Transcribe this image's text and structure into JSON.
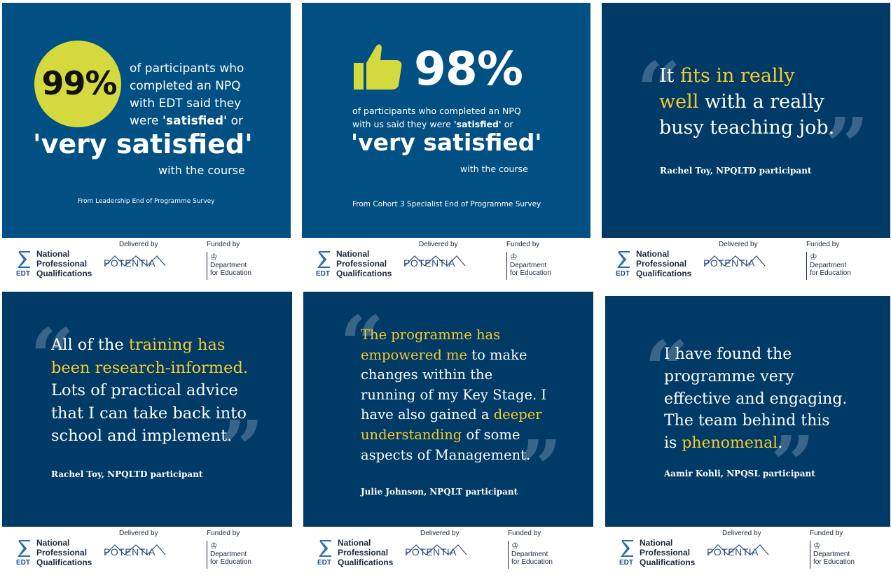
{
  "colors": {
    "blue_light": "#015083",
    "blue_dark": "#003A67",
    "highlight": "#F6C92C",
    "circle": "#D4DA3E"
  },
  "footer": {
    "npq_line1": "National",
    "npq_line2": "Professional",
    "npq_line3": "Qualifications",
    "edt": "EDT",
    "delivered_by": "Delivered by",
    "tsh": "TSH",
    "potentia": "POTENTIA",
    "funded_by": "Funded by",
    "dfe_line1": "Department",
    "dfe_line2": "for Education"
  },
  "card1": {
    "stat": "99%",
    "line1": "of participants who",
    "line2": "completed an NPQ",
    "line3": "with EDT said they",
    "line4_pre": "were ",
    "line4_bold": "'satisfied'",
    "line4_post": " or",
    "big": "'very satisfied'",
    "tail": "with the course",
    "source": "From Leadership End of Programme Survey"
  },
  "card2": {
    "stat": "98%",
    "line1": "of participants who completed an NPQ",
    "line2_pre": "with us said they were ",
    "line2_bold": "'satisfied'",
    "line2_post": " or",
    "big": "'very satisfied'",
    "tail": "with the course",
    "source": "From Cohort 3 Specialist End of Programme Survey"
  },
  "card3": {
    "q1": "It ",
    "q1_hl": "fits in really",
    "q2_hl": "well",
    "q2": " with a really",
    "q3": "busy teaching job.",
    "attrib": "Rachel Toy, NPQLTD participant"
  },
  "card4": {
    "q1": "All of the ",
    "q1_hl": "training has",
    "q2_hl": "been research-informed.",
    "q3": "Lots of practical advice",
    "q4": "that I can take back into",
    "q5": "school and implement.",
    "attrib": "Rachel Toy, NPQLTD participant"
  },
  "card5": {
    "q1_hl": "The programme has",
    "q2_hl": "empowered me",
    "q2": " to make",
    "q3": "changes within the",
    "q4": "running of my Key Stage. I",
    "q5": "have also gained a ",
    "q5_hl": "deeper",
    "q6_hl": "understanding",
    "q6": " of some",
    "q7": "aspects of Management.",
    "attrib": "Julie Johnson, NPQLT participant"
  },
  "card6": {
    "q1": "I have found the",
    "q2": "programme very",
    "q3": "effective and engaging.",
    "q4": "The team behind this",
    "q5": "is ",
    "q5_hl": "phenomenal",
    "q5_end": ".",
    "attrib": "Aamir Kohli, NPQSL participant"
  }
}
